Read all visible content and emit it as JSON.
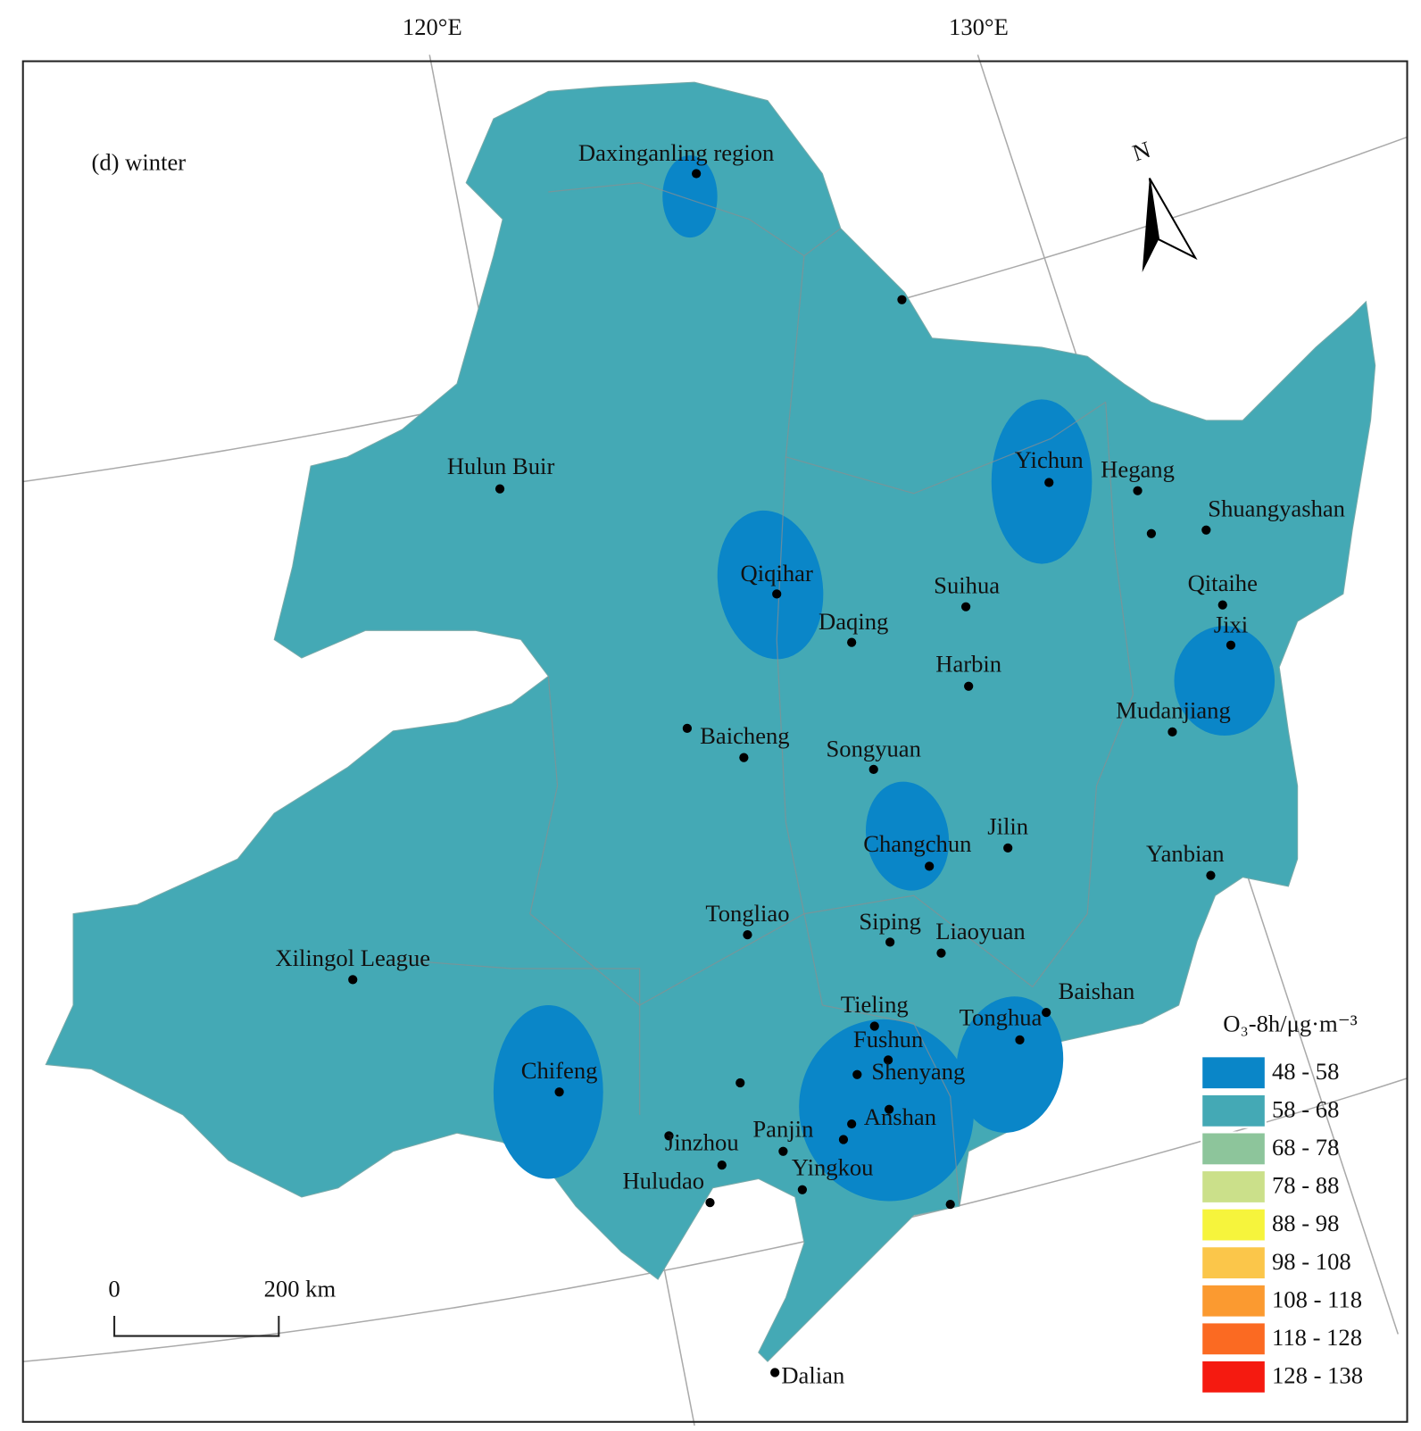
{
  "title": "(d) winter",
  "graticule": {
    "longitudes": [
      "120°E",
      "130°E"
    ]
  },
  "north_arrow": "N",
  "scale_bar": {
    "start": "0",
    "end": "200 km"
  },
  "cities": [
    "Daxinganling region",
    "Hulun Buir",
    "Yichun",
    "Hegang",
    "Shuangyashan",
    "Qiqihar",
    "Suihua",
    "Qitaihe",
    "Daqing",
    "Jixi",
    "Harbin",
    "Mudanjiang",
    "Baicheng",
    "Songyuan",
    "Jilin",
    "Changchun",
    "Yanbian",
    "Tongliao",
    "Siping",
    "Liaoyuan",
    "Xilingol League",
    "Baishan",
    "Tieling",
    "Tonghua",
    "Fushun",
    "Shenyang",
    "Chifeng",
    "Anshan",
    "Panjin",
    "Jinzhou",
    "Yingkou",
    "Huludao",
    "Dalian"
  ],
  "legend": {
    "title": "O₃-8h/μg·m⁻³",
    "items": [
      {
        "label": "48 - 58",
        "color": "#0a86c8"
      },
      {
        "label": "58 - 68",
        "color": "#44a9b5"
      },
      {
        "label": "68 - 78",
        "color": "#8dc59b"
      },
      {
        "label": "78 - 88",
        "color": "#cbe08a"
      },
      {
        "label": "88 - 98",
        "color": "#f6f43c"
      },
      {
        "label": "98 - 108",
        "color": "#fbc64a"
      },
      {
        "label": "108 - 118",
        "color": "#fb9a30"
      },
      {
        "label": "118 - 128",
        "color": "#fb6a22"
      },
      {
        "label": "128 - 138",
        "color": "#f51a10"
      }
    ]
  }
}
